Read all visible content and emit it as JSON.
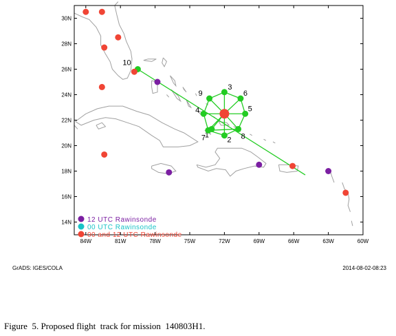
{
  "footer": {
    "left": "GrADS: IGES/COLA",
    "right": "2014-08-02-08:23"
  },
  "caption": "Figure  5. Proposed flight  track for mission  140803H1.",
  "colors": {
    "track": "#22cc22",
    "center": "#f04535",
    "rawin12": "#7b1fa2",
    "rawin00": "#19c3c7",
    "rawinBoth": "#f04535"
  },
  "map": {
    "lon_range": [
      -85,
      -60
    ],
    "lat_range": [
      13,
      31
    ],
    "x_ticks": [
      {
        "lon": -84,
        "label": "84W"
      },
      {
        "lon": -81,
        "label": "81W"
      },
      {
        "lon": -78,
        "label": "78W"
      },
      {
        "lon": -75,
        "label": "75W"
      },
      {
        "lon": -72,
        "label": "72W"
      },
      {
        "lon": -69,
        "label": "69W"
      },
      {
        "lon": -66,
        "label": "66W"
      },
      {
        "lon": -63,
        "label": "63W"
      },
      {
        "lon": -60,
        "label": "60W"
      }
    ],
    "y_ticks": [
      {
        "lat": 14,
        "label": "14N"
      },
      {
        "lat": 16,
        "label": "16N"
      },
      {
        "lat": 18,
        "label": "18N"
      },
      {
        "lat": 20,
        "label": "20N"
      },
      {
        "lat": 22,
        "label": "22N"
      },
      {
        "lat": 24,
        "label": "24N"
      },
      {
        "lat": 26,
        "label": "26N"
      },
      {
        "lat": 28,
        "label": "28N"
      },
      {
        "lat": 30,
        "label": "30N"
      }
    ],
    "legend": [
      {
        "label": "12 UTC Rawinsonde",
        "color": "#7b1fa2"
      },
      {
        "label": "00 UTC Rawinsonde",
        "color": "#19c3c7"
      },
      {
        "label": "00 and 12 UTC Rawinsonde",
        "color": "#f04535"
      }
    ],
    "track_line": [
      [
        -79.5,
        26.0
      ],
      [
        -65.0,
        17.7
      ]
    ],
    "center": {
      "lon": -72.0,
      "lat": 22.5
    },
    "waypoints": [
      {
        "label": "1",
        "lon": -73.1,
        "lat": 21.3
      },
      {
        "label": "2",
        "lon": -72.0,
        "lat": 20.8
      },
      {
        "label": "3",
        "lon": -72.0,
        "lat": 24.2
      },
      {
        "label": "4",
        "lon": -73.8,
        "lat": 22.5
      },
      {
        "label": "5",
        "lon": -70.2,
        "lat": 22.5
      },
      {
        "label": "6",
        "lon": -70.6,
        "lat": 23.7
      },
      {
        "label": "7",
        "lon": -73.4,
        "lat": 21.2
      },
      {
        "label": "8",
        "lon": -70.8,
        "lat": 21.3
      },
      {
        "label": "9",
        "lon": -73.3,
        "lat": 23.7
      },
      {
        "label": "10",
        "lon": -79.5,
        "lat": 26.0
      }
    ],
    "rawinsondes": [
      {
        "lon": -84.0,
        "lat": 30.5,
        "kind": "both"
      },
      {
        "lon": -82.6,
        "lat": 30.5,
        "kind": "both"
      },
      {
        "lon": -81.2,
        "lat": 28.5,
        "kind": "both"
      },
      {
        "lon": -82.4,
        "lat": 27.7,
        "kind": "both"
      },
      {
        "lon": -79.8,
        "lat": 25.8,
        "kind": "both"
      },
      {
        "lon": -82.6,
        "lat": 24.6,
        "kind": "both"
      },
      {
        "lon": -82.4,
        "lat": 19.3,
        "kind": "both"
      },
      {
        "lon": -66.1,
        "lat": 18.4,
        "kind": "both"
      },
      {
        "lon": -61.5,
        "lat": 16.3,
        "kind": "both"
      },
      {
        "lon": -77.8,
        "lat": 25.0,
        "kind": "12"
      },
      {
        "lon": -76.8,
        "lat": 17.9,
        "kind": "12"
      },
      {
        "lon": -69.0,
        "lat": 18.5,
        "kind": "12"
      },
      {
        "lon": -63.0,
        "lat": 18.0,
        "kind": "12"
      }
    ],
    "coast_color": "#a0a0a0"
  }
}
